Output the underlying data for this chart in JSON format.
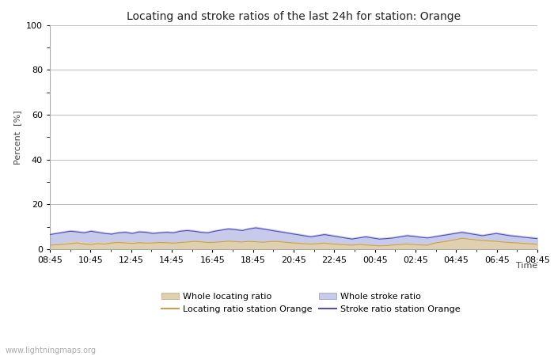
{
  "title": "Locating and stroke ratios of the last 24h for station: Orange",
  "xlabel": "Time",
  "ylabel": "Percent  [%]",
  "ylim": [
    0,
    100
  ],
  "yticks": [
    0,
    20,
    40,
    60,
    80,
    100
  ],
  "yticks_minor": [
    10,
    30,
    50,
    70,
    90
  ],
  "x_labels": [
    "08:45",
    "10:45",
    "12:45",
    "14:45",
    "16:45",
    "18:45",
    "20:45",
    "22:45",
    "00:45",
    "02:45",
    "04:45",
    "06:45",
    "08:45"
  ],
  "watermark": "www.lightningmaps.org",
  "bg_color": "#ffffff",
  "plot_bg_color": "#ffffff",
  "grid_color": "#bbbbbb",
  "whole_locating_fill_color": "#dfd0b0",
  "whole_stroke_fill_color": "#c8caec",
  "locating_line_color": "#c8a050",
  "stroke_line_color": "#5050b0",
  "whole_locating_ratio": [
    2.1,
    2.3,
    2.8,
    3.2,
    3.5,
    3.0,
    2.8,
    3.1,
    3.0,
    3.3,
    3.5,
    3.2,
    3.0,
    3.4,
    3.1,
    3.2,
    3.4,
    3.3,
    3.0,
    3.5,
    3.6,
    3.8,
    3.7,
    3.5,
    3.4,
    3.6,
    3.9,
    3.7,
    3.5,
    3.8,
    3.6,
    3.4,
    3.7,
    3.8,
    3.5,
    3.2,
    3.0,
    2.8,
    2.6,
    2.8,
    3.0,
    2.7,
    2.5,
    2.3,
    2.1,
    2.4,
    2.2,
    2.0,
    1.8,
    1.9,
    2.2,
    2.4,
    2.6,
    2.4,
    2.2,
    2.1,
    3.0,
    3.5,
    4.0,
    4.5,
    5.2,
    4.8,
    4.5,
    4.2,
    4.0,
    3.8,
    3.5,
    3.3,
    3.1,
    2.9,
    2.7,
    2.5
  ],
  "whole_stroke_ratio": [
    7.0,
    7.5,
    8.0,
    8.5,
    8.2,
    7.8,
    8.5,
    8.0,
    7.5,
    7.2,
    7.8,
    8.0,
    7.5,
    8.2,
    8.0,
    7.5,
    7.8,
    8.0,
    7.8,
    8.5,
    8.8,
    8.5,
    8.0,
    7.8,
    8.5,
    9.0,
    9.5,
    9.2,
    8.8,
    9.5,
    10.0,
    9.5,
    9.0,
    8.5,
    8.0,
    7.5,
    7.0,
    6.5,
    6.0,
    6.5,
    7.0,
    6.5,
    6.0,
    5.5,
    5.0,
    5.5,
    6.0,
    5.5,
    5.0,
    5.2,
    5.5,
    6.0,
    6.5,
    6.2,
    5.8,
    5.5,
    6.0,
    6.5,
    7.0,
    7.5,
    8.0,
    7.5,
    7.0,
    6.5,
    7.0,
    7.5,
    7.0,
    6.5,
    6.2,
    5.8,
    5.5,
    5.2
  ],
  "locating_line_ratio": [
    1.8,
    2.0,
    2.2,
    2.5,
    2.8,
    2.3,
    2.1,
    2.5,
    2.3,
    2.8,
    3.0,
    2.8,
    2.6,
    2.9,
    2.7,
    2.8,
    3.0,
    2.9,
    2.7,
    3.0,
    3.2,
    3.5,
    3.3,
    3.0,
    3.1,
    3.3,
    3.6,
    3.4,
    3.2,
    3.5,
    3.3,
    3.1,
    3.4,
    3.5,
    3.2,
    2.9,
    2.7,
    2.5,
    2.3,
    2.5,
    2.7,
    2.4,
    2.2,
    2.0,
    1.8,
    2.1,
    1.9,
    1.7,
    1.5,
    1.6,
    1.9,
    2.1,
    2.3,
    2.1,
    1.9,
    1.8,
    2.7,
    3.2,
    3.7,
    4.2,
    4.9,
    4.5,
    4.2,
    3.9,
    3.7,
    3.5,
    3.2,
    3.0,
    2.8,
    2.6,
    2.4,
    2.2
  ],
  "stroke_line_ratio": [
    6.5,
    7.0,
    7.5,
    8.0,
    7.7,
    7.3,
    8.0,
    7.5,
    7.0,
    6.7,
    7.3,
    7.5,
    7.0,
    7.7,
    7.5,
    7.0,
    7.3,
    7.5,
    7.3,
    8.0,
    8.3,
    8.0,
    7.5,
    7.3,
    8.0,
    8.5,
    9.0,
    8.7,
    8.3,
    9.0,
    9.5,
    9.0,
    8.5,
    8.0,
    7.5,
    7.0,
    6.5,
    6.0,
    5.5,
    6.0,
    6.5,
    6.0,
    5.5,
    5.0,
    4.5,
    5.0,
    5.5,
    5.0,
    4.5,
    4.7,
    5.0,
    5.5,
    6.0,
    5.7,
    5.3,
    5.0,
    5.5,
    6.0,
    6.5,
    7.0,
    7.5,
    7.0,
    6.5,
    6.0,
    6.5,
    7.0,
    6.5,
    6.0,
    5.7,
    5.3,
    5.0,
    4.7
  ],
  "title_fontsize": 10,
  "axis_fontsize": 8,
  "tick_fontsize": 8,
  "legend_fontsize": 8
}
